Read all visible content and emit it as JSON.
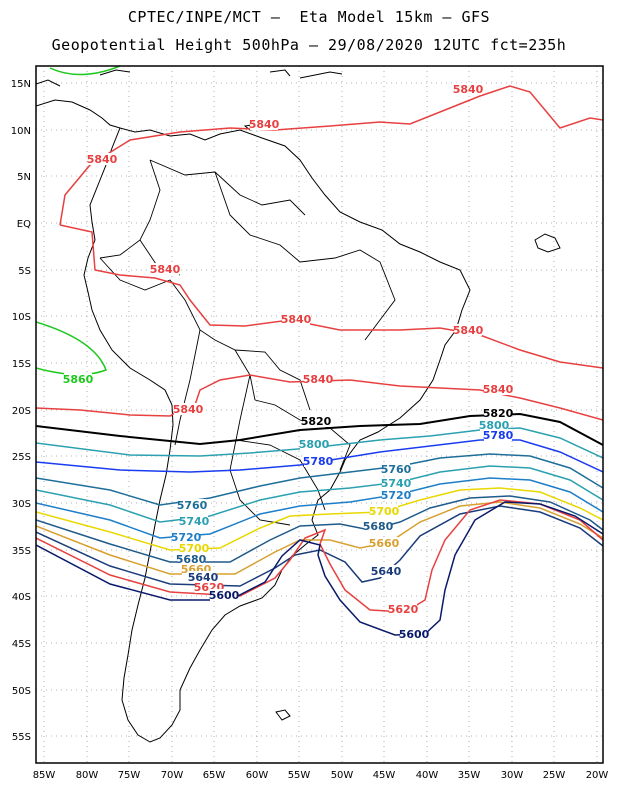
{
  "title_line1": "CPTEC/INPE/MCT –  Eta Model 15km – GFS",
  "title_line2": "Geopotential Height 500hPa – 29/08/2020 12UTC fct=235h",
  "lat_labels": [
    "15N",
    "10N",
    "5N",
    "EQ",
    "5S",
    "10S",
    "15S",
    "20S",
    "25S",
    "30S",
    "35S",
    "40S",
    "45S",
    "50S",
    "55S"
  ],
  "lon_labels": [
    "85W",
    "80W",
    "75W",
    "70W",
    "65W",
    "60W",
    "55W",
    "50W",
    "45W",
    "40W",
    "35W",
    "30W",
    "25W",
    "20W"
  ],
  "contour_labels": [
    {
      "text": "5840",
      "color": "#e84040"
    },
    {
      "text": "5840",
      "color": "#e84040"
    },
    {
      "text": "5840",
      "color": "#e84040"
    },
    {
      "text": "5840",
      "color": "#e84040"
    },
    {
      "text": "5840",
      "color": "#e84040"
    },
    {
      "text": "5840",
      "color": "#e84040"
    },
    {
      "text": "5840",
      "color": "#e84040"
    },
    {
      "text": "5840",
      "color": "#e84040"
    },
    {
      "text": "5840",
      "color": "#e84040"
    },
    {
      "text": "5860",
      "color": "#1ec81e"
    },
    {
      "text": "5820",
      "color": "#000000"
    },
    {
      "text": "5820",
      "color": "#000000"
    },
    {
      "text": "5800",
      "color": "#2aa0b0"
    },
    {
      "text": "5800",
      "color": "#2aa0b0"
    },
    {
      "text": "5780",
      "color": "#1a3cf0"
    },
    {
      "text": "5780",
      "color": "#1a3cf0"
    },
    {
      "text": "5760",
      "color": "#1e6e9a"
    },
    {
      "text": "5760",
      "color": "#1e6e9a"
    },
    {
      "text": "5740",
      "color": "#2aa0b0"
    },
    {
      "text": "5740",
      "color": "#2aa0b0"
    },
    {
      "text": "5720",
      "color": "#1e7ec8"
    },
    {
      "text": "5720",
      "color": "#1e7ec8"
    },
    {
      "text": "5700",
      "color": "#e8d800"
    },
    {
      "text": "5700",
      "color": "#e8d800"
    },
    {
      "text": "5680",
      "color": "#1e5a8a"
    },
    {
      "text": "5680",
      "color": "#1e5a8a"
    },
    {
      "text": "5660",
      "color": "#d8a030"
    },
    {
      "text": "5660",
      "color": "#d8a030"
    },
    {
      "text": "5640",
      "color": "#1a3c7a"
    },
    {
      "text": "5640",
      "color": "#1a3c7a"
    },
    {
      "text": "5620",
      "color": "#e84040"
    },
    {
      "text": "5620",
      "color": "#e84040"
    },
    {
      "text": "5600",
      "color": "#0a1a6a"
    },
    {
      "text": "5600",
      "color": "#0a1a6a"
    }
  ]
}
